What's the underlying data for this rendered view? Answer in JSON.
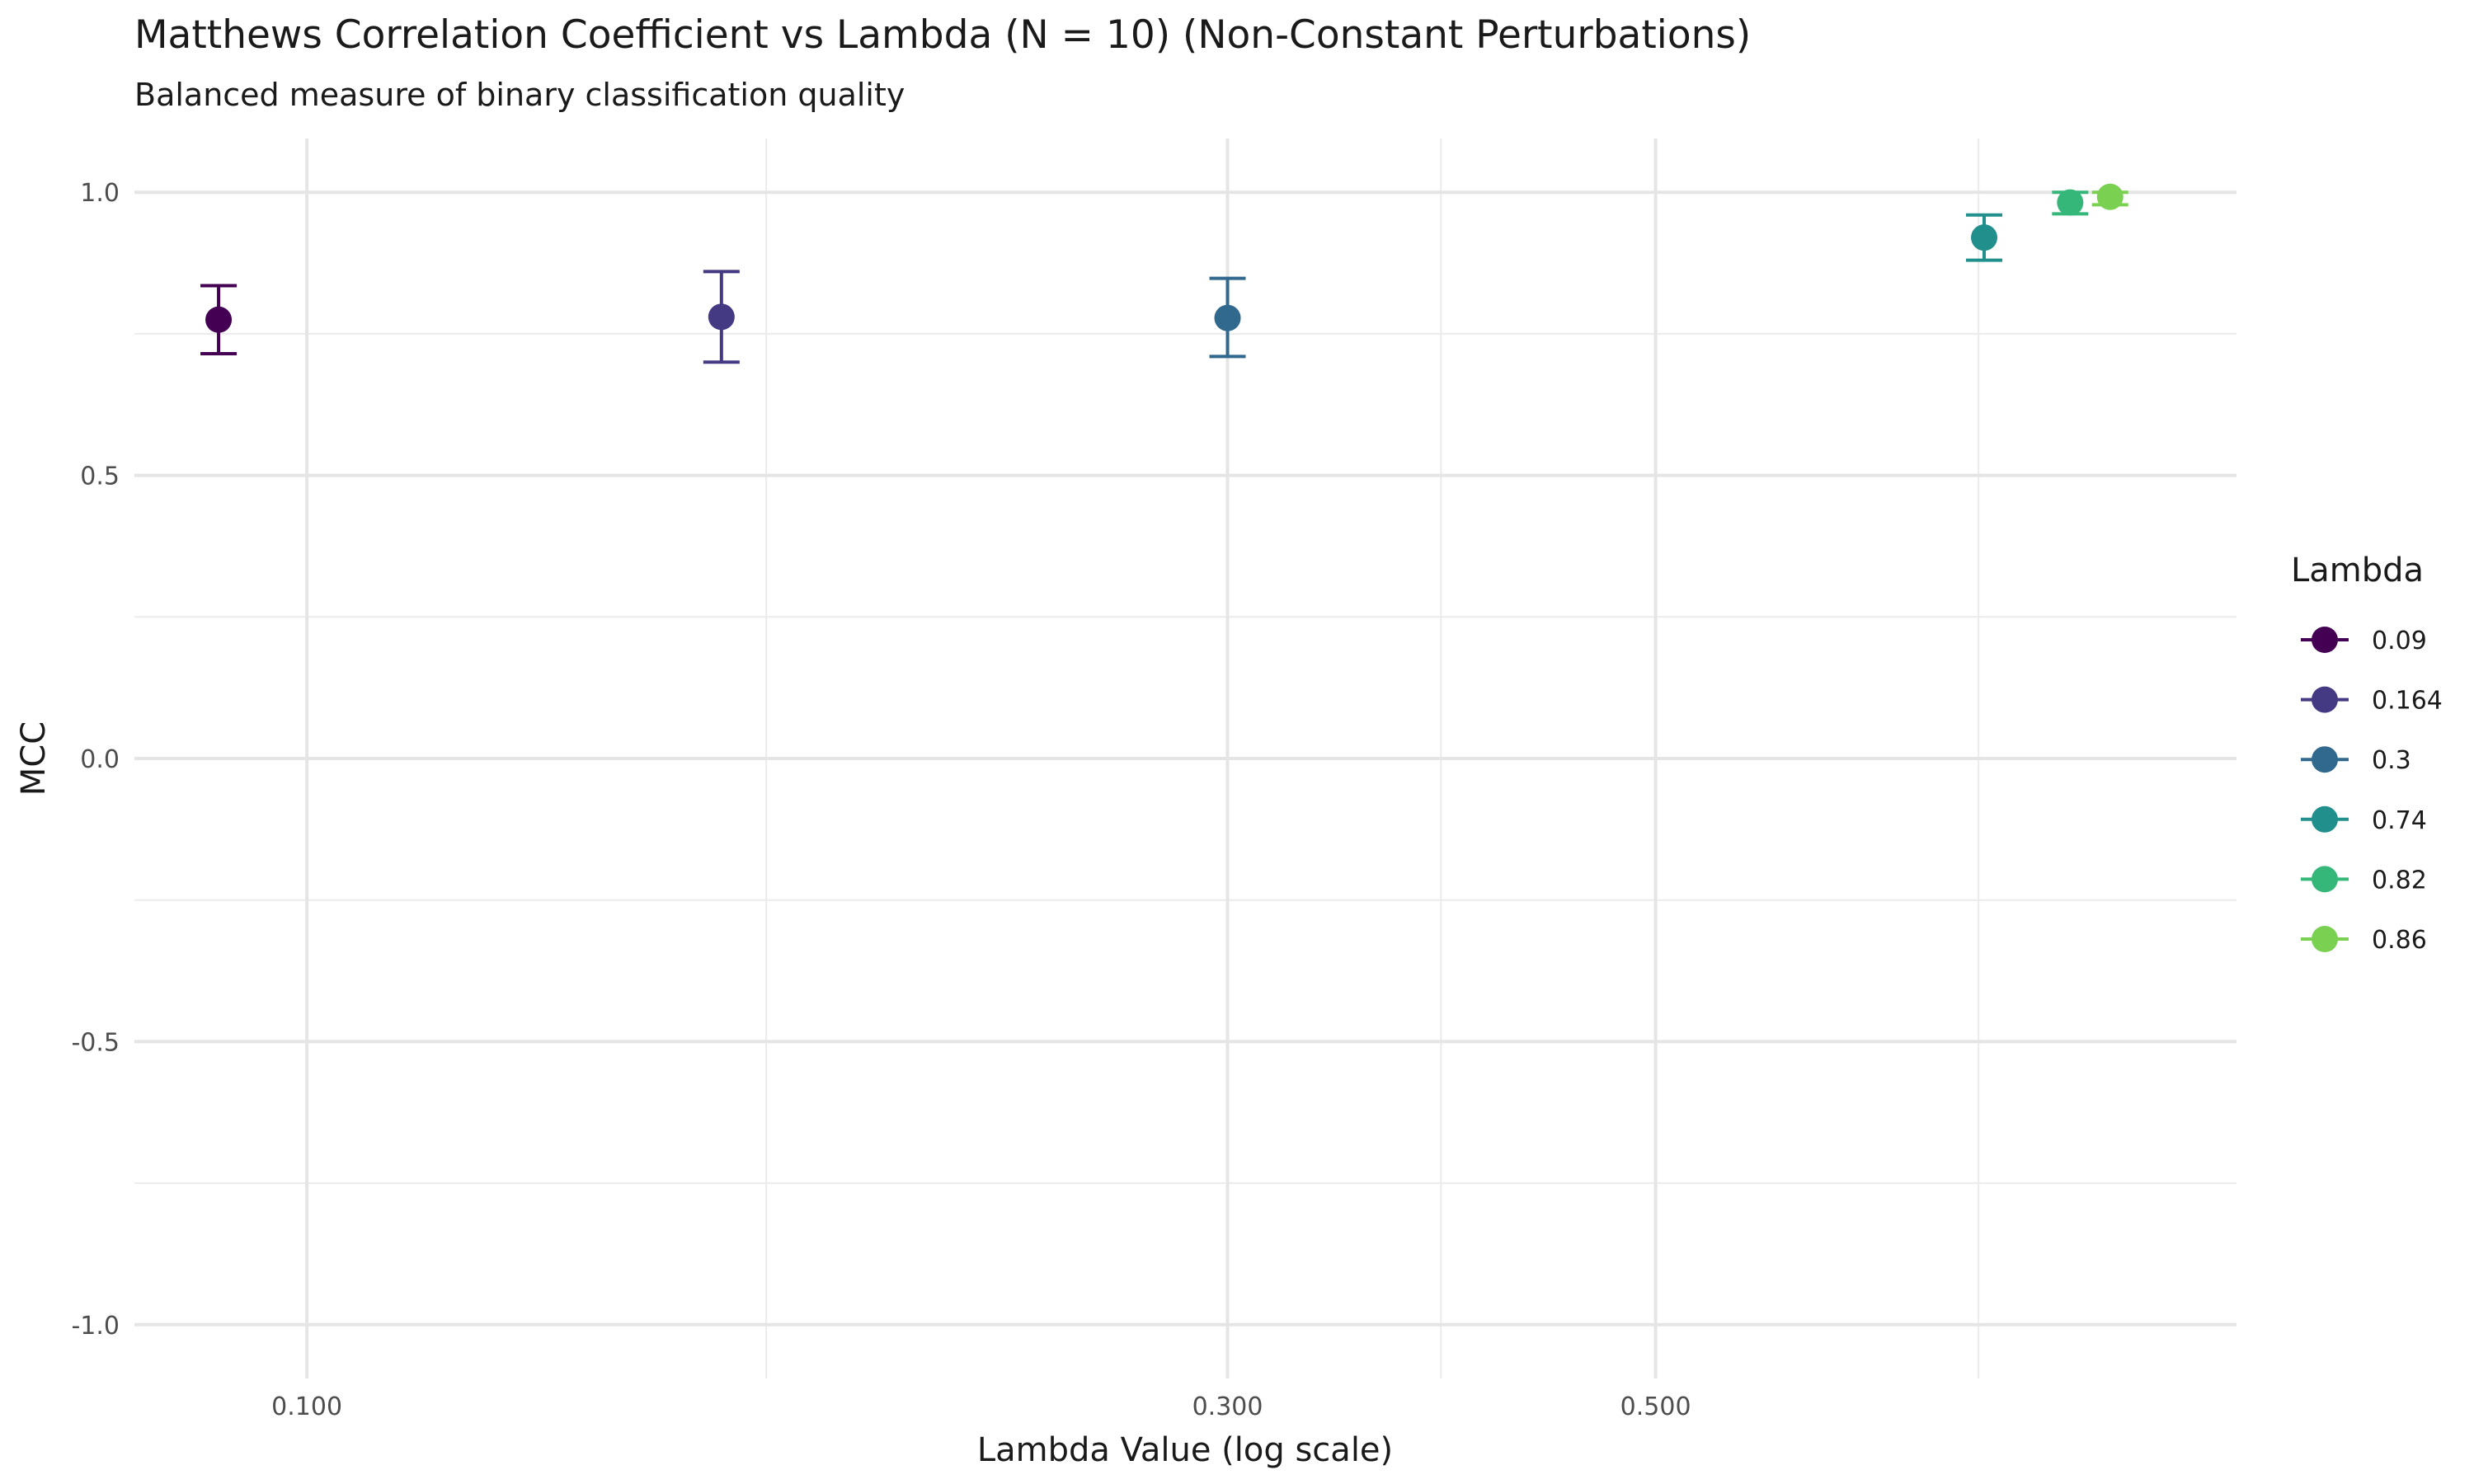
{
  "chart_data": {
    "type": "scatter",
    "title": "Matthews Correlation Coefficient vs Lambda (N = 10) (Non-Constant Perturbations)",
    "subtitle": "Balanced measure of binary classification quality",
    "xlabel": "Lambda Value (log scale)",
    "ylabel": "MCC",
    "x_scale": "log",
    "xlim": [
      0.0814,
      1.0
    ],
    "ylim": [
      -1.095,
      1.095
    ],
    "x_ticks": [
      {
        "value": 0.1,
        "label": "0.100"
      },
      {
        "value": 0.3,
        "label": "0.300"
      },
      {
        "value": 0.5,
        "label": "0.500"
      }
    ],
    "x_minor_ticks": [
      0.173,
      0.387,
      0.735
    ],
    "y_ticks": [
      {
        "value": -1.0,
        "label": "-1.0"
      },
      {
        "value": -0.5,
        "label": "-0.5"
      },
      {
        "value": 0.0,
        "label": "0.0"
      },
      {
        "value": 0.5,
        "label": "0.5"
      },
      {
        "value": 1.0,
        "label": "1.0"
      }
    ],
    "y_minor_ticks": [
      -0.75,
      -0.25,
      0.25,
      0.75
    ],
    "grid": true,
    "legend": {
      "title": "Lambda",
      "position": "right",
      "entries": [
        "0.09",
        "0.164",
        "0.3",
        "0.74",
        "0.82",
        "0.86"
      ]
    },
    "series": [
      {
        "name": "0.09",
        "x": 0.09,
        "y": 0.775,
        "ymin": 0.715,
        "ymax": 0.835,
        "color": "#440154"
      },
      {
        "name": "0.164",
        "x": 0.164,
        "y": 0.78,
        "ymin": 0.7,
        "ymax": 0.86,
        "color": "#443A83"
      },
      {
        "name": "0.3",
        "x": 0.3,
        "y": 0.778,
        "ymin": 0.71,
        "ymax": 0.848,
        "color": "#31688E"
      },
      {
        "name": "0.74",
        "x": 0.74,
        "y": 0.92,
        "ymin": 0.88,
        "ymax": 0.96,
        "color": "#21908C"
      },
      {
        "name": "0.82",
        "x": 0.82,
        "y": 0.982,
        "ymin": 0.962,
        "ymax": 1.0,
        "color": "#35B779"
      },
      {
        "name": "0.86",
        "x": 0.86,
        "y": 0.992,
        "ymin": 0.978,
        "ymax": 1.0,
        "color": "#7AD151"
      }
    ]
  }
}
